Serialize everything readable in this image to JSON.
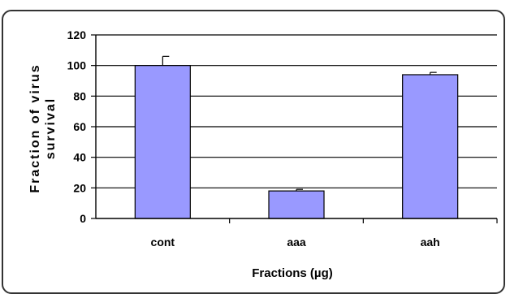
{
  "chart_data": {
    "type": "bar",
    "categories": [
      "cont",
      "aaa",
      "aah"
    ],
    "values": [
      100,
      18,
      94
    ],
    "errors": [
      6,
      1,
      1.5
    ],
    "ylim": [
      0,
      120
    ],
    "yticks": [
      0,
      20,
      40,
      60,
      80,
      100,
      120
    ],
    "xlabel": "Fractions (µg)",
    "ylabel_line1": "Fraction of virus",
    "ylabel_line2": "survival",
    "grid": true,
    "bar_color": "#9999ff",
    "bar_edge_color": "#000000"
  }
}
